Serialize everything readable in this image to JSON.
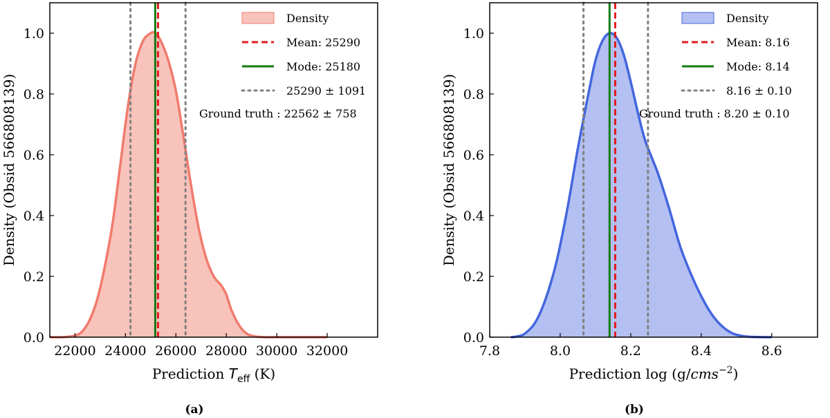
{
  "chart_data": [
    {
      "type": "area",
      "caption": "(a)",
      "xlabel": "Prediction T_eff (K)",
      "xlabel_prefix": "Prediction ",
      "xlabel_symbol": "T",
      "xlabel_subscript": "eff",
      "xlabel_unit": " (K)",
      "ylabel": "Density (Obsid 566808139)",
      "xlim": [
        21000,
        34000
      ],
      "ylim": [
        0,
        1.1
      ],
      "xticks": [
        22000,
        24000,
        26000,
        28000,
        30000,
        32000
      ],
      "yticks": [
        0.0,
        0.2,
        0.4,
        0.6,
        0.8,
        1.0
      ],
      "ytick_labels": [
        "0.0",
        "0.2",
        "0.4",
        "0.6",
        "0.8",
        "1.0"
      ],
      "fill_color": "#f8c3bb",
      "line_color": "#f07b6d",
      "density": {
        "x": [
          21000,
          21500,
          22000,
          22300,
          22600,
          22900,
          23200,
          23500,
          23800,
          24100,
          24400,
          24700,
          25000,
          25180,
          25400,
          25700,
          26000,
          26300,
          26600,
          26900,
          27200,
          27500,
          27800,
          28000,
          28200,
          28500,
          28800,
          29100,
          29500,
          30000,
          32000
        ],
        "y": [
          0.0,
          0.0,
          0.005,
          0.02,
          0.06,
          0.13,
          0.24,
          0.38,
          0.57,
          0.76,
          0.9,
          0.975,
          1.0,
          1.0,
          0.975,
          0.91,
          0.81,
          0.66,
          0.5,
          0.36,
          0.26,
          0.2,
          0.17,
          0.14,
          0.09,
          0.04,
          0.012,
          0.003,
          0.0,
          0.0,
          0.0
        ]
      },
      "mean": 25290,
      "mode": 25180,
      "std_low": 24199,
      "std_high": 26381,
      "legend": {
        "density": "Density",
        "mean": "Mean: 25290",
        "mode": "Mode: 25180",
        "std": "25290 ± 1091"
      },
      "ground_truth": "Ground truth :  22562 ± 758"
    },
    {
      "type": "area",
      "caption": "(b)",
      "xlabel": "Prediction log (g/cms^-2)",
      "xlabel_prefix": "Prediction log (g/",
      "xlabel_math": "cms",
      "xlabel_sup": "−2",
      "xlabel_suffix": ")",
      "ylabel": "Density (Obsid 566808139)",
      "xlim": [
        7.8,
        8.73
      ],
      "ylim": [
        0,
        1.1
      ],
      "xticks": [
        7.8,
        8.0,
        8.2,
        8.4,
        8.6
      ],
      "xtick_labels": [
        "7.8",
        "8.0",
        "8.2",
        "8.4",
        "8.6"
      ],
      "yticks": [
        0.0,
        0.2,
        0.4,
        0.6,
        0.8,
        1.0
      ],
      "ytick_labels": [
        "0.0",
        "0.2",
        "0.4",
        "0.6",
        "0.8",
        "1.0"
      ],
      "fill_color": "#b3c0f1",
      "line_color": "#4466dd",
      "density": {
        "x": [
          7.86,
          7.88,
          7.9,
          7.93,
          7.96,
          7.99,
          8.02,
          8.05,
          8.08,
          8.1,
          8.12,
          8.14,
          8.16,
          8.18,
          8.2,
          8.22,
          8.24,
          8.26,
          8.28,
          8.31,
          8.34,
          8.37,
          8.4,
          8.43,
          8.46,
          8.49,
          8.53,
          8.6
        ],
        "y": [
          0.0,
          0.003,
          0.012,
          0.05,
          0.13,
          0.25,
          0.42,
          0.62,
          0.8,
          0.91,
          0.975,
          1.0,
          0.985,
          0.93,
          0.84,
          0.74,
          0.65,
          0.59,
          0.53,
          0.42,
          0.3,
          0.21,
          0.135,
          0.075,
          0.035,
          0.012,
          0.002,
          0.0
        ]
      },
      "mean": 8.156,
      "mode": 8.14,
      "std_low": 8.066,
      "std_high": 8.249,
      "legend": {
        "density": "Density",
        "mean": "Mean: 8.16",
        "mode": "Mode: 8.14",
        "std": "8.16 ± 0.10"
      },
      "ground_truth": "Ground truth :  8.20 ± 0.10"
    }
  ]
}
